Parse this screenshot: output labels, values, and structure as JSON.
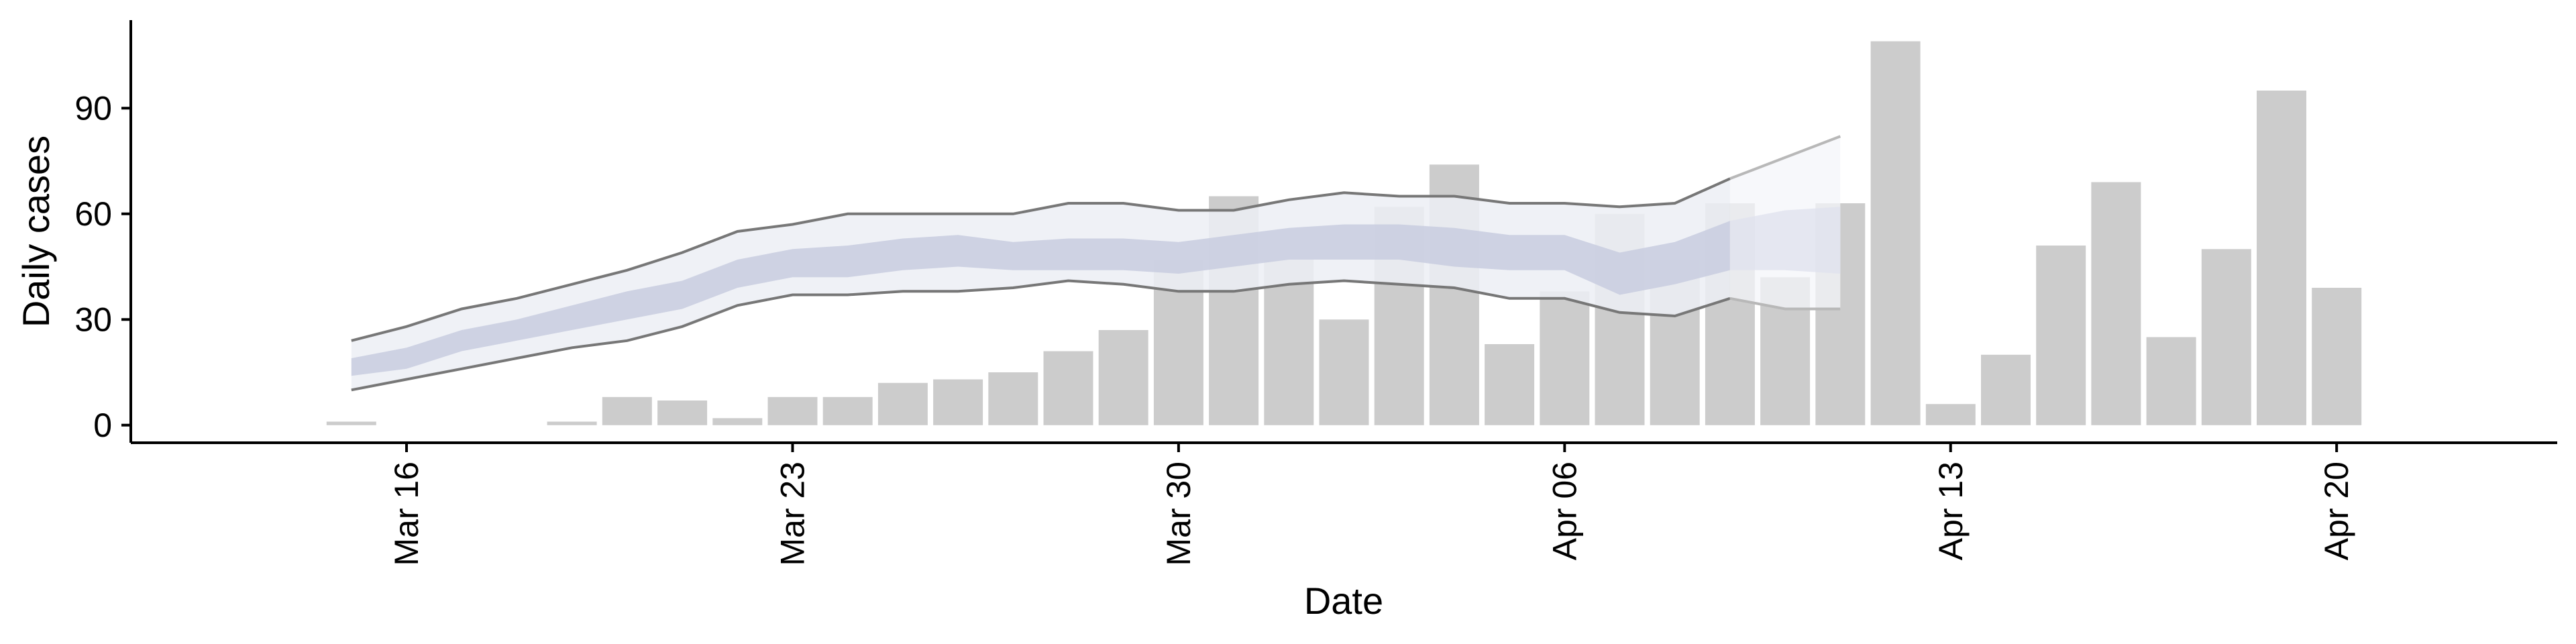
{
  "chart_data": {
    "type": "bar",
    "xlabel": "Date",
    "ylabel": "Daily cases",
    "ylim": [
      -5,
      115
    ],
    "yticks": [
      0,
      30,
      60,
      90
    ],
    "xticks": [
      {
        "date": "2020-03-16",
        "label": "Mar 16"
      },
      {
        "date": "2020-03-23",
        "label": "Mar 23"
      },
      {
        "date": "2020-03-30",
        "label": "Mar 30"
      },
      {
        "date": "2020-04-06",
        "label": "Apr 06"
      },
      {
        "date": "2020-04-13",
        "label": "Apr 13"
      },
      {
        "date": "2020-04-20",
        "label": "Apr 20"
      }
    ],
    "xlim": [
      "2020-03-11",
      "2020-04-24"
    ],
    "grid": false,
    "colors": {
      "bars": "#cccccc",
      "band_outer": "#eceef4",
      "band_inner": "#c5cadf",
      "forecast_outer": "#f4f5f9",
      "forecast_inner": "#dfe2ee",
      "lines": "#777777",
      "forecast_lines": "#b8b8b8"
    },
    "bars": {
      "dates": [
        "2020-03-15",
        "2020-03-19",
        "2020-03-20",
        "2020-03-21",
        "2020-03-22",
        "2020-03-23",
        "2020-03-24",
        "2020-03-25",
        "2020-03-26",
        "2020-03-27",
        "2020-03-28",
        "2020-03-29",
        "2020-03-30",
        "2020-03-31",
        "2020-04-01",
        "2020-04-02",
        "2020-04-03",
        "2020-04-04",
        "2020-04-05",
        "2020-04-06",
        "2020-04-07",
        "2020-04-08",
        "2020-04-09",
        "2020-04-10",
        "2020-04-11",
        "2020-04-12",
        "2020-04-13",
        "2020-04-14",
        "2020-04-15",
        "2020-04-16",
        "2020-04-17",
        "2020-04-18",
        "2020-04-19",
        "2020-04-20"
      ],
      "values": [
        1,
        1,
        8,
        7,
        2,
        8,
        8,
        12,
        13,
        15,
        21,
        27,
        47,
        65,
        47,
        30,
        62,
        74,
        23,
        38,
        60,
        47,
        63,
        42,
        63,
        109,
        6,
        20,
        51,
        69,
        25,
        50,
        95,
        39
      ]
    },
    "band_dates": [
      "2020-03-15",
      "2020-03-16",
      "2020-03-17",
      "2020-03-18",
      "2020-03-19",
      "2020-03-20",
      "2020-03-21",
      "2020-03-22",
      "2020-03-23",
      "2020-03-24",
      "2020-03-25",
      "2020-03-26",
      "2020-03-27",
      "2020-03-28",
      "2020-03-29",
      "2020-03-30",
      "2020-03-31",
      "2020-04-01",
      "2020-04-02",
      "2020-04-03",
      "2020-04-04",
      "2020-04-05",
      "2020-04-06",
      "2020-04-07",
      "2020-04-08",
      "2020-04-09",
      "2020-04-10",
      "2020-04-11"
    ],
    "outer_upper": [
      24,
      28,
      33,
      36,
      40,
      44,
      49,
      55,
      57,
      60,
      60,
      60,
      60,
      63,
      63,
      61,
      61,
      64,
      66,
      65,
      65,
      63,
      63,
      62,
      63,
      70,
      76,
      82
    ],
    "outer_lower": [
      10,
      13,
      16,
      19,
      22,
      24,
      28,
      34,
      37,
      37,
      38,
      38,
      39,
      41,
      40,
      38,
      38,
      40,
      41,
      40,
      39,
      36,
      36,
      32,
      31,
      36,
      33,
      33
    ],
    "inner_upper": [
      19,
      22,
      27,
      30,
      34,
      38,
      41,
      47,
      50,
      51,
      53,
      54,
      52,
      53,
      53,
      52,
      54,
      56,
      57,
      57,
      56,
      54,
      54,
      49,
      52,
      58,
      61,
      62
    ],
    "inner_lower": [
      14,
      16,
      21,
      24,
      27,
      30,
      33,
      39,
      42,
      42,
      44,
      45,
      44,
      44,
      44,
      43,
      45,
      47,
      47,
      47,
      45,
      44,
      44,
      37,
      40,
      44,
      44,
      43
    ],
    "forecast_start_date": "2020-04-09"
  }
}
